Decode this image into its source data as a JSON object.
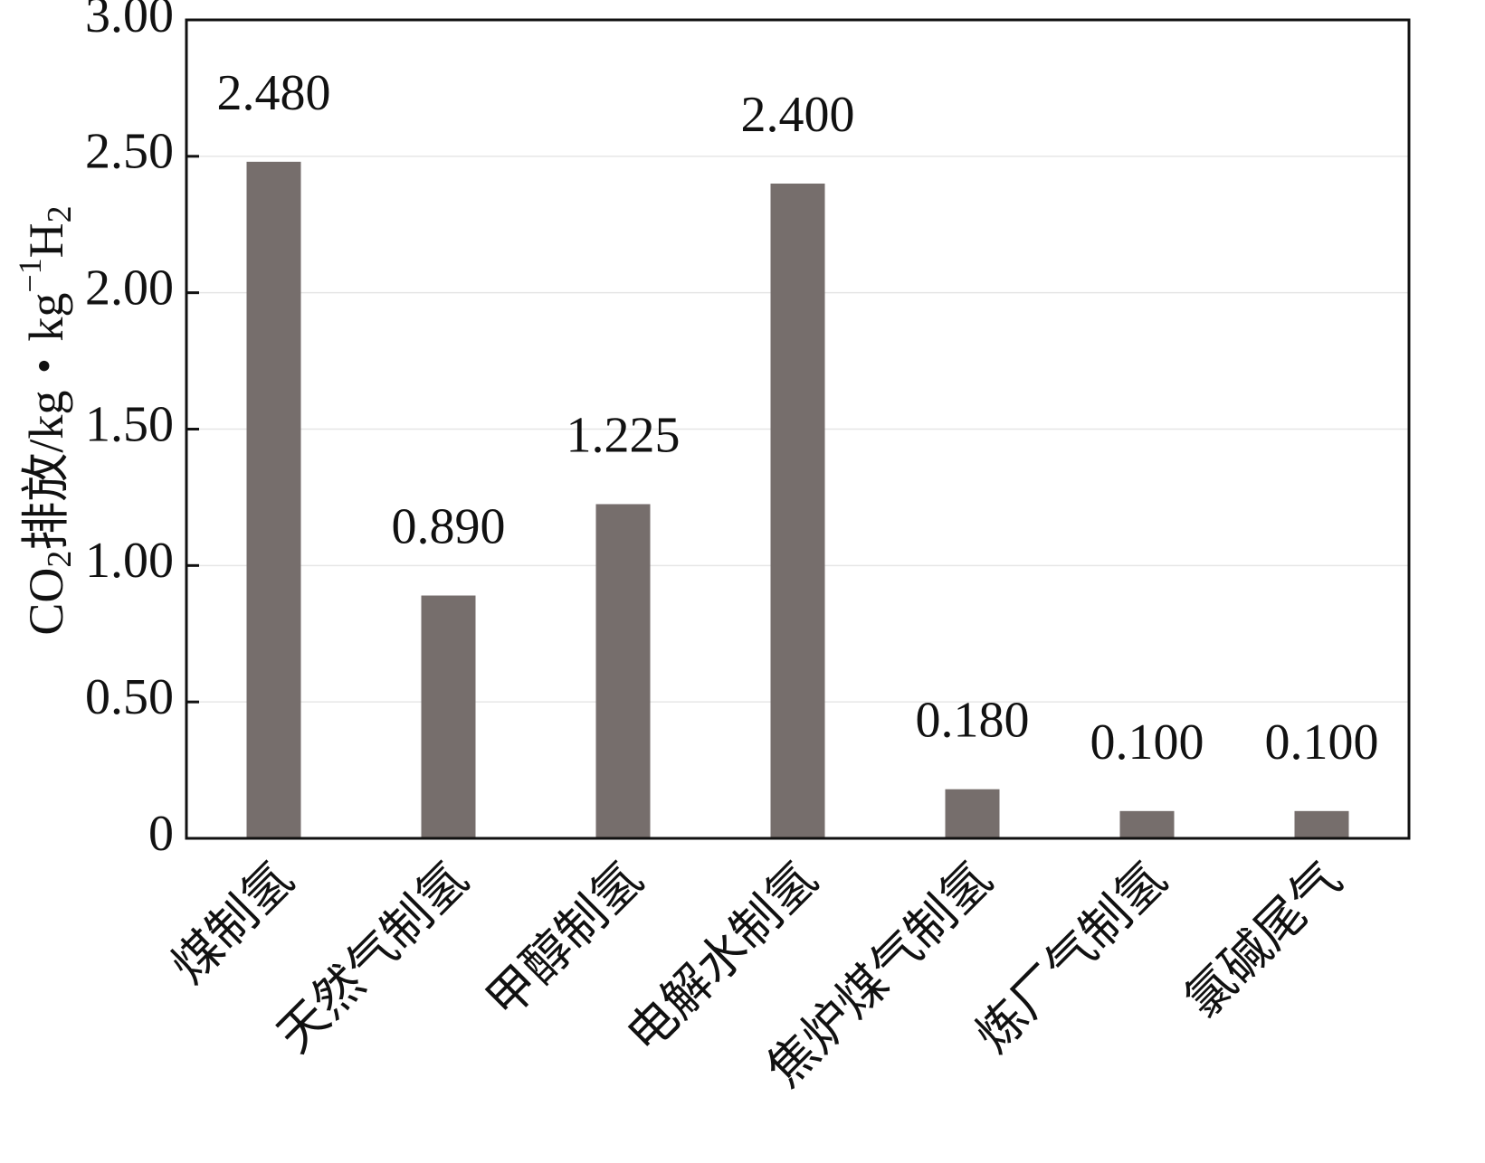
{
  "chart_data": {
    "type": "bar",
    "categories": [
      "煤制氢",
      "天然气制氢",
      "甲醇制氢",
      "电解水制氢",
      "焦炉煤气制氢",
      "炼厂气制氢",
      "氯碱尾气"
    ],
    "values": [
      2.48,
      0.89,
      1.225,
      2.4,
      0.18,
      0.1,
      0.1
    ],
    "data_labels": [
      "2.480",
      "0.890",
      "1.225",
      "2.400",
      "0.180",
      "0.100",
      "0.100"
    ],
    "ylabel": {
      "prefix": "CO",
      "sub1": "2",
      "middle": "排放/kg・kg",
      "sup": "−1",
      "suffix": "H",
      "sub2": "2"
    },
    "ylim": [
      0,
      3.0
    ],
    "yticks": [
      0,
      0.5,
      1.0,
      1.5,
      2.0,
      2.5,
      3.0
    ],
    "ytick_labels": [
      "0",
      "0.50",
      "1.00",
      "1.50",
      "2.00",
      "2.50",
      "3.00"
    ],
    "grid": true,
    "bar_color": "#766e6c"
  }
}
